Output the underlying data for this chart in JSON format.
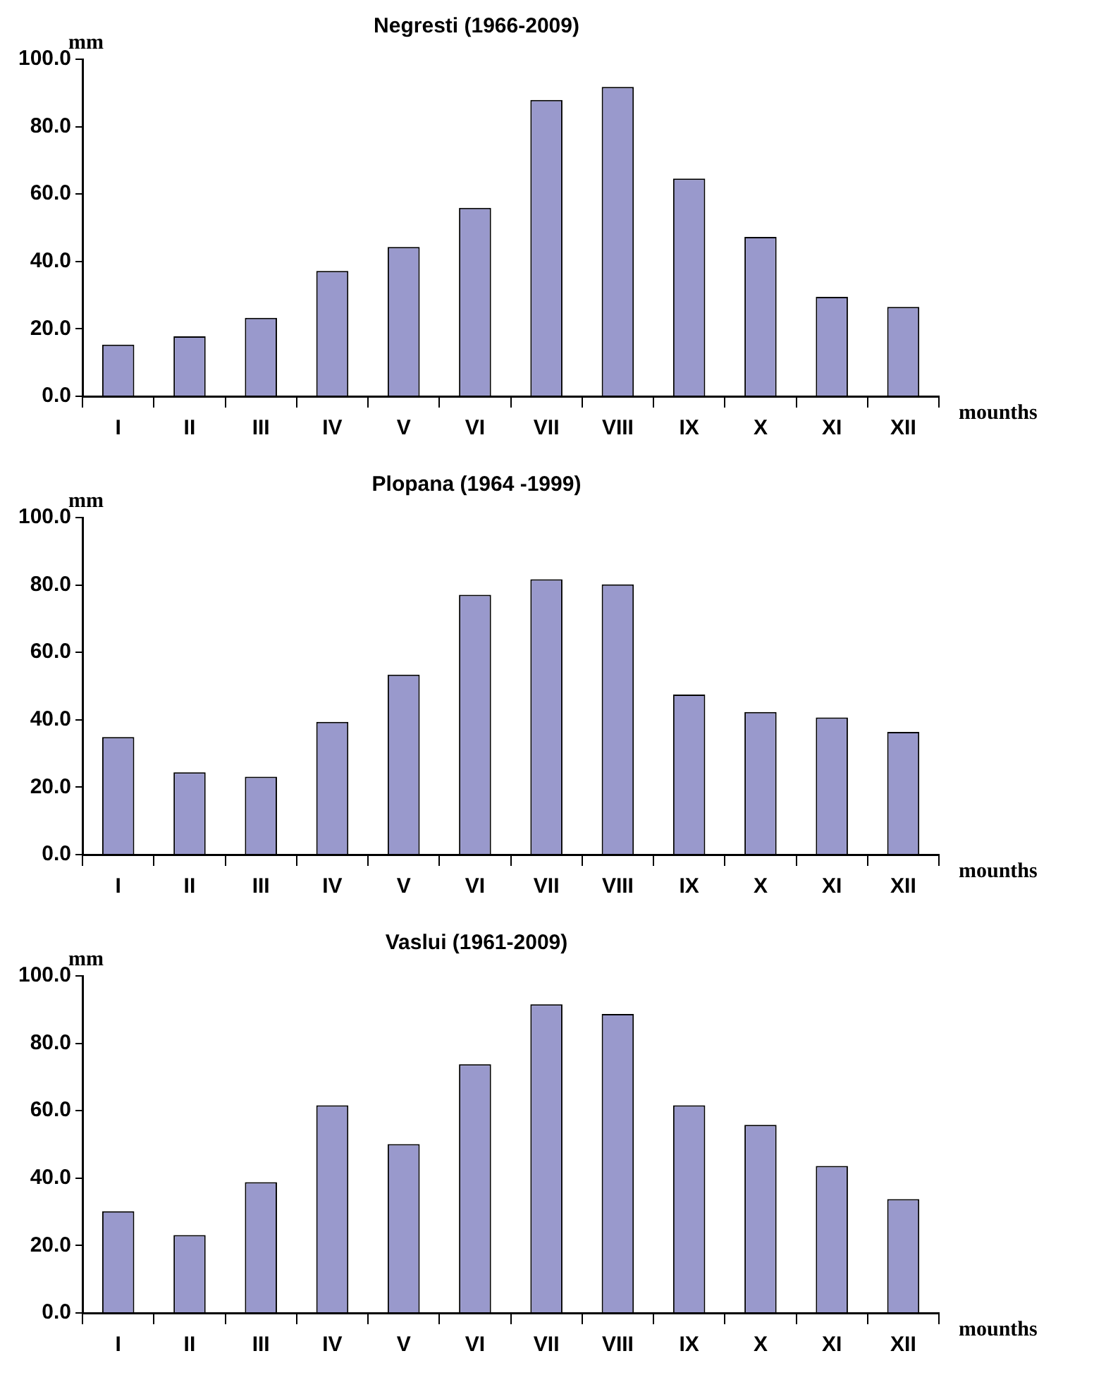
{
  "chart_data": [
    {
      "type": "bar",
      "title": "Negresti (1966-2009)",
      "ylabel": "mm",
      "xlabel": "mounths",
      "categories": [
        "I",
        "II",
        "III",
        "IV",
        "V",
        "VI",
        "VII",
        "VIII",
        "IX",
        "X",
        "XI",
        "XII"
      ],
      "values": [
        15.3,
        17.8,
        23.3,
        37.2,
        44.3,
        55.9,
        87.9,
        91.8,
        64.6,
        47.3,
        29.5,
        26.5
      ],
      "color": "#9999cc",
      "ylim": [
        0,
        100
      ],
      "yticks": [
        {
          "value": 0,
          "label": "0.0"
        },
        {
          "value": 20,
          "label": "20.0"
        },
        {
          "value": 40,
          "label": "40.0"
        },
        {
          "value": 60,
          "label": "60.0"
        },
        {
          "value": 80,
          "label": "80.0"
        },
        {
          "value": 100,
          "label": "100.0"
        }
      ],
      "grid": false,
      "legend": false
    },
    {
      "type": "bar",
      "title": "Plopana (1964 -1999)",
      "ylabel": "mm",
      "xlabel": "mounths",
      "categories": [
        "I",
        "II",
        "III",
        "IV",
        "V",
        "VI",
        "VII",
        "VIII",
        "IX",
        "X",
        "XI",
        "XII"
      ],
      "values": [
        34.9,
        24.4,
        23.1,
        39.4,
        53.4,
        77.1,
        81.7,
        80.2,
        47.5,
        42.3,
        40.7,
        36.4
      ],
      "color": "#9999cc",
      "ylim": [
        0,
        100
      ],
      "yticks": [
        {
          "value": 0,
          "label": "0.0"
        },
        {
          "value": 20,
          "label": "20.0"
        },
        {
          "value": 40,
          "label": "40.0"
        },
        {
          "value": 60,
          "label": "60.0"
        },
        {
          "value": 80,
          "label": "80.0"
        },
        {
          "value": 100,
          "label": "100.0"
        }
      ],
      "grid": false,
      "legend": false
    },
    {
      "type": "bar",
      "title": "Vaslui (1961-2009)",
      "ylabel": "mm",
      "xlabel": "mounths",
      "categories": [
        "I",
        "II",
        "III",
        "IV",
        "V",
        "VI",
        "VII",
        "VIII",
        "IX",
        "X",
        "XI",
        "XII"
      ],
      "values": [
        30.2,
        23.1,
        38.8,
        61.6,
        50.1,
        73.8,
        91.6,
        88.7,
        61.6,
        55.8,
        43.6,
        33.8
      ],
      "color": "#9999cc",
      "ylim": [
        0,
        100
      ],
      "yticks": [
        {
          "value": 0,
          "label": "0.0"
        },
        {
          "value": 20,
          "label": "20.0"
        },
        {
          "value": 40,
          "label": "40.0"
        },
        {
          "value": 60,
          "label": "60.0"
        },
        {
          "value": 80,
          "label": "80.0"
        },
        {
          "value": 100,
          "label": "100.0"
        }
      ],
      "grid": false,
      "legend": false
    }
  ]
}
